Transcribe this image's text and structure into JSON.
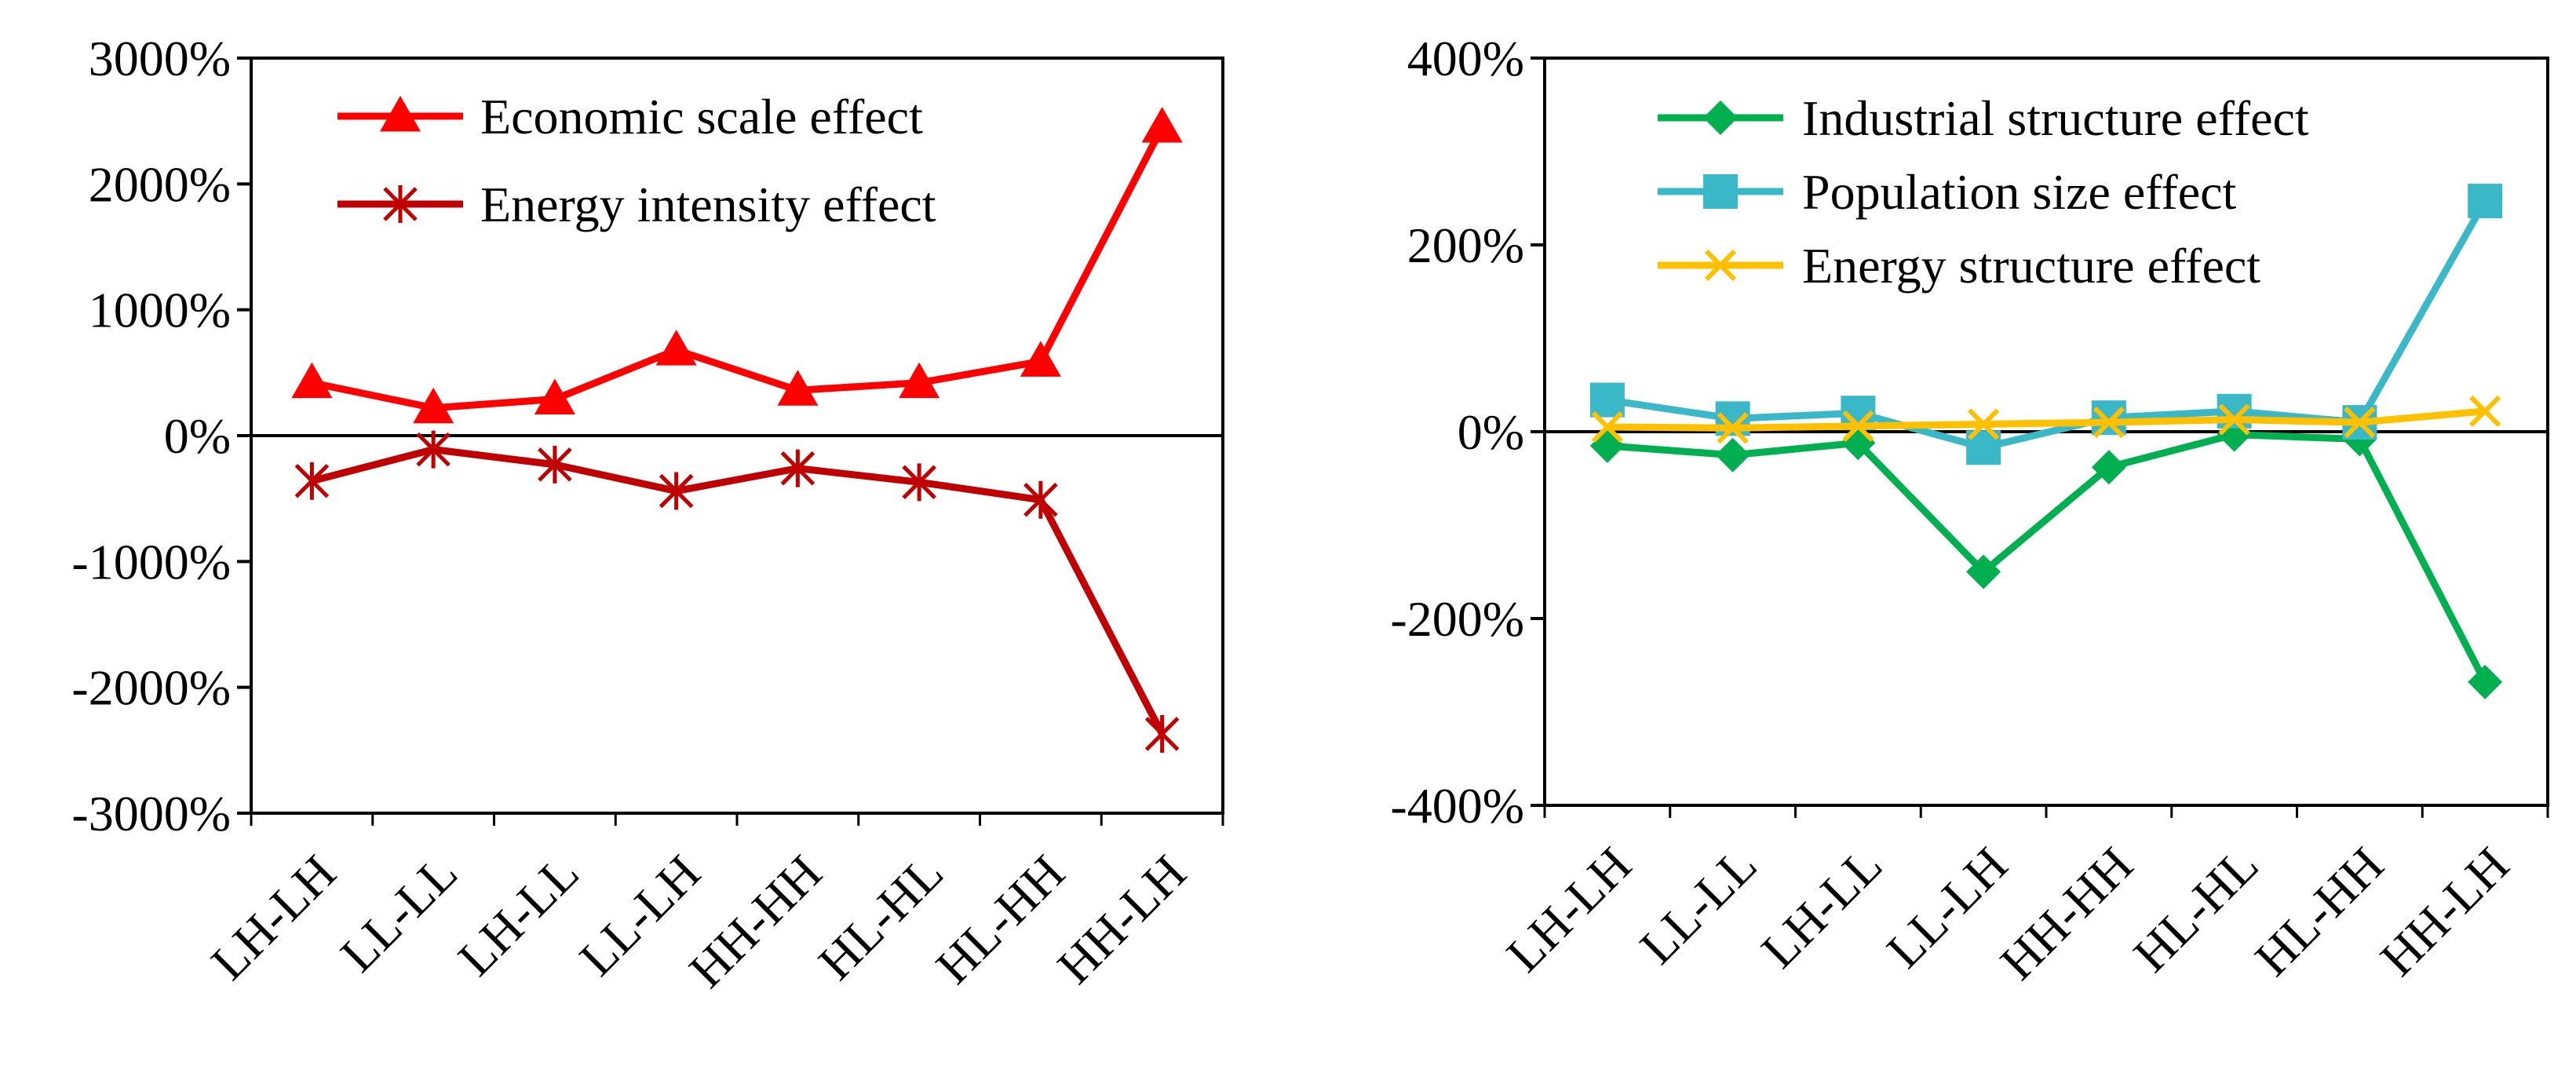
{
  "chart_data": [
    {
      "type": "line",
      "categories": [
        "LH-LH",
        "LL-LL",
        "LH-LL",
        "LL-LH",
        "HH-HH",
        "HL-HL",
        "HL-HH",
        "HH-LH"
      ],
      "yticks": [
        "3000%",
        "2000%",
        "1000%",
        "0%",
        "-1000%",
        "-2000%",
        "-3000%"
      ],
      "ylim": [
        -3000,
        3000
      ],
      "series": [
        {
          "name": "Economic scale effect",
          "color": "#ff0000",
          "marker": "triangle",
          "values": [
            420,
            220,
            290,
            680,
            360,
            420,
            590,
            2450
          ]
        },
        {
          "name": "Energy intensity effect",
          "color": "#c00000",
          "marker": "star",
          "values": [
            -360,
            -110,
            -230,
            -440,
            -260,
            -370,
            -510,
            -2370
          ]
        }
      ]
    },
    {
      "type": "line",
      "categories": [
        "LH-LH",
        "LL-LL",
        "LH-LL",
        "LL-LH",
        "HH-HH",
        "HL-HL",
        "HL-HH",
        "HH-LH"
      ],
      "yticks": [
        "400%",
        "200%",
        "0%",
        "-200%",
        "-400%"
      ],
      "ylim": [
        -400,
        400
      ],
      "series": [
        {
          "name": "Industrial structure effect",
          "color": "#00b050",
          "marker": "diamond",
          "values": [
            -15,
            -25,
            -12,
            -150,
            -38,
            -3,
            -8,
            -268
          ]
        },
        {
          "name": "Population size effect",
          "color": "#3bb8c8",
          "marker": "square",
          "values": [
            34,
            14,
            20,
            -17,
            15,
            22,
            10,
            247
          ]
        },
        {
          "name": "Energy structure effect",
          "color": "#ffc000",
          "marker": "x",
          "values": [
            5,
            4,
            6,
            8,
            10,
            13,
            10,
            22
          ]
        }
      ]
    }
  ]
}
